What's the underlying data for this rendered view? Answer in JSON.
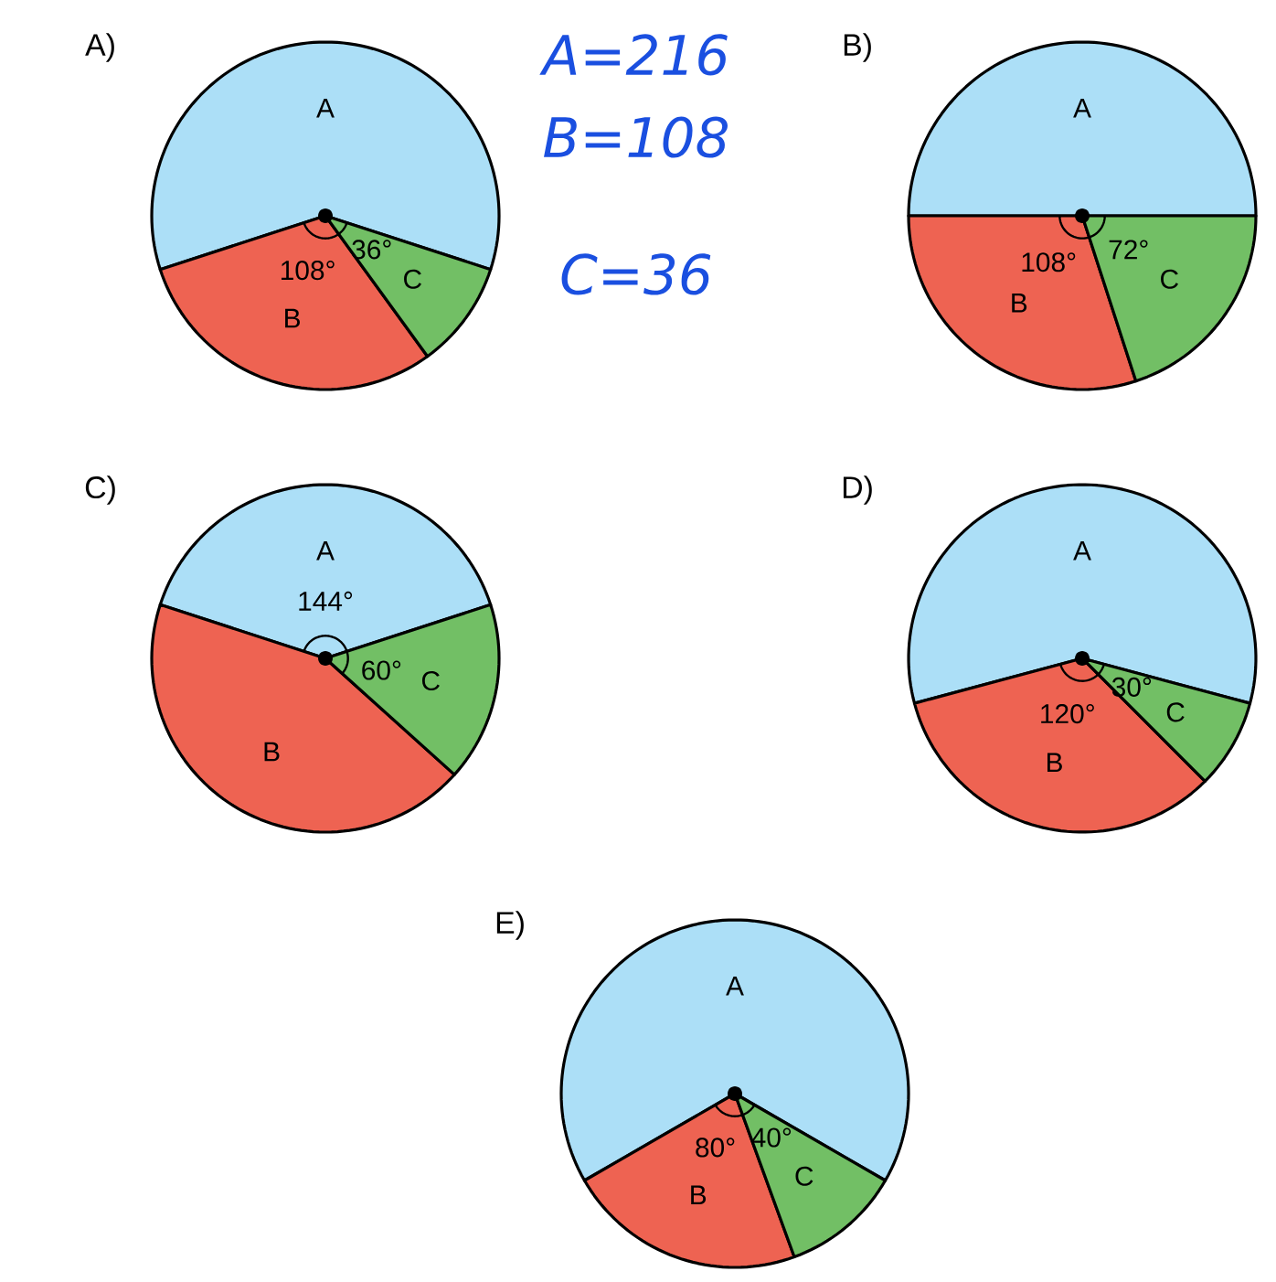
{
  "chart_data": [
    {
      "type": "pie",
      "title": "A)",
      "categories": [
        "A",
        "B",
        "C"
      ],
      "values": [
        216,
        108,
        36
      ],
      "colors": [
        "#acdff7",
        "#ee6352",
        "#72bf65"
      ],
      "value_labels": [
        null,
        "108°",
        "36°"
      ],
      "annotations": [
        "A=216",
        "B=108",
        "C=36"
      ]
    },
    {
      "type": "pie",
      "title": "B)",
      "categories": [
        "A",
        "B",
        "C"
      ],
      "values": [
        180,
        108,
        72
      ],
      "colors": [
        "#acdff7",
        "#ee6352",
        "#72bf65"
      ],
      "value_labels": [
        null,
        "108°",
        "72°"
      ]
    },
    {
      "type": "pie",
      "title": "C)",
      "categories": [
        "A",
        "B",
        "C"
      ],
      "values": [
        144,
        156,
        60
      ],
      "colors": [
        "#acdff7",
        "#ee6352",
        "#72bf65"
      ],
      "value_labels": [
        "144°",
        null,
        "60°"
      ]
    },
    {
      "type": "pie",
      "title": "D)",
      "categories": [
        "A",
        "B",
        "C"
      ],
      "values": [
        210,
        120,
        30
      ],
      "colors": [
        "#acdff7",
        "#ee6352",
        "#72bf65"
      ],
      "value_labels": [
        null,
        "120°",
        "30°"
      ]
    },
    {
      "type": "pie",
      "title": "E)",
      "categories": [
        "A",
        "B",
        "C"
      ],
      "values": [
        240,
        80,
        40
      ],
      "colors": [
        "#acdff7",
        "#ee6352",
        "#72bf65"
      ],
      "value_labels": [
        null,
        "80°",
        "40°"
      ]
    }
  ]
}
